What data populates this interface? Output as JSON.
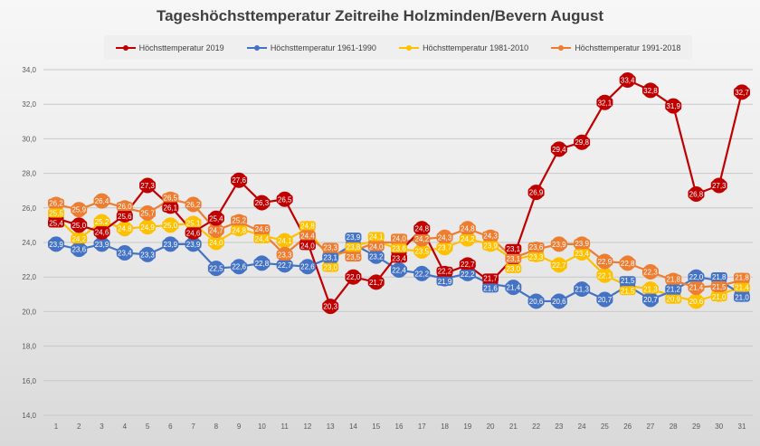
{
  "chart_data": {
    "type": "line",
    "title": "Tageshöchsttemperatur Zeitreihe Holzminden/Bevern August",
    "xlabel": "",
    "ylabel": "",
    "categories": [
      "1",
      "2",
      "3",
      "4",
      "5",
      "6",
      "7",
      "8",
      "9",
      "10",
      "11",
      "12",
      "13",
      "14",
      "15",
      "16",
      "17",
      "18",
      "19",
      "20",
      "21",
      "22",
      "23",
      "24",
      "25",
      "26",
      "27",
      "28",
      "29",
      "30",
      "31"
    ],
    "ylim": [
      14,
      34
    ],
    "yticks": [
      "14,0",
      "16,0",
      "18,0",
      "20,0",
      "22,0",
      "24,0",
      "26,0",
      "28,0",
      "30,0",
      "32,0",
      "34,0"
    ],
    "grid": true,
    "legend_position": "top",
    "data_labels": true,
    "series": [
      {
        "name": "Höchsttemperatur 2019",
        "color": "#c00000",
        "values": [
          25.4,
          25.0,
          24.6,
          25.6,
          27.3,
          26.1,
          24.6,
          25.4,
          27.6,
          26.3,
          26.5,
          24.0,
          20.3,
          22.0,
          21.7,
          23.4,
          24.8,
          22.2,
          22.7,
          21.7,
          23.1,
          26.9,
          29.4,
          29.8,
          32.1,
          33.4,
          32.8,
          31.9,
          26.8,
          27.3,
          32.7
        ]
      },
      {
        "name": "Höchsttemperatur 1961-1990",
        "color": "#4472c4",
        "values": [
          23.9,
          23.6,
          23.9,
          23.4,
          23.3,
          23.9,
          23.9,
          22.5,
          22.6,
          22.8,
          22.7,
          22.6,
          23.1,
          23.9,
          23.2,
          22.4,
          22.2,
          21.9,
          22.2,
          21.6,
          21.4,
          20.6,
          20.6,
          21.3,
          20.7,
          21.5,
          20.7,
          21.2,
          22.0,
          21.8,
          21.0
        ]
      },
      {
        "name": "Höchsttemperatur 1981-2010",
        "color": "#ffc000",
        "values": [
          25.5,
          24.2,
          25.2,
          24.8,
          24.9,
          25.0,
          25.1,
          24.0,
          24.8,
          24.4,
          24.1,
          24.8,
          23.0,
          23.8,
          24.1,
          23.6,
          23.5,
          23.7,
          24.2,
          23.9,
          23.0,
          23.3,
          22.7,
          23.4,
          22.1,
          21.5,
          21.3,
          20.9,
          20.6,
          21.0,
          21.4
        ]
      },
      {
        "name": "Höchsttemperatur 1991-2018",
        "color": "#ed7d31",
        "values": [
          26.2,
          25.9,
          26.4,
          26.0,
          25.7,
          26.5,
          26.2,
          24.7,
          25.2,
          24.6,
          23.3,
          24.4,
          23.3,
          23.5,
          24.0,
          24.0,
          24.2,
          24.3,
          24.8,
          24.3,
          23.1,
          23.6,
          23.9,
          23.9,
          22.9,
          22.8,
          22.3,
          21.8,
          21.4,
          21.5,
          21.8
        ]
      }
    ]
  }
}
